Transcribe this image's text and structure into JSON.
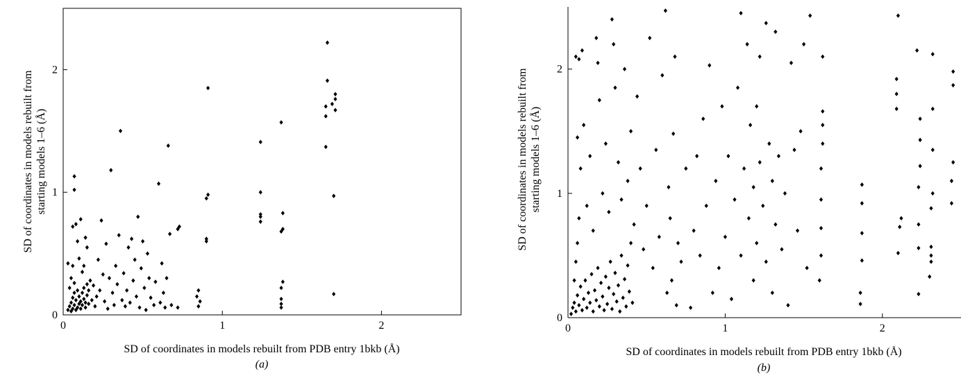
{
  "figure": {
    "background": "#ffffff",
    "point_color": "#000000"
  },
  "chart_data": [
    {
      "type": "scatter",
      "panel_label": "(a)",
      "xlabel": "SD of coordinates in models rebuilt from PDB entry 1bkb (Å)",
      "ylabel_line1": "SD of coordinates in models rebuilt from",
      "ylabel_line2": "starting models 1–6 (Å)",
      "xlim": [
        0,
        2.5
      ],
      "ylim": [
        0,
        2.5
      ],
      "xticks": [
        0,
        1,
        2
      ],
      "yticks": [
        0,
        1,
        2
      ],
      "xtick_labels": [
        "0",
        "1",
        "2"
      ],
      "ytick_labels": [
        "0",
        "1",
        "2"
      ],
      "frame": "box",
      "grid": false,
      "legend": "none",
      "points": [
        [
          0.03,
          0.04
        ],
        [
          0.04,
          0.07
        ],
        [
          0.05,
          0.03
        ],
        [
          0.05,
          0.1
        ],
        [
          0.06,
          0.05
        ],
        [
          0.06,
          0.14
        ],
        [
          0.07,
          0.08
        ],
        [
          0.07,
          0.18
        ],
        [
          0.08,
          0.04
        ],
        [
          0.08,
          0.12
        ],
        [
          0.09,
          0.06
        ],
        [
          0.09,
          0.2
        ],
        [
          0.1,
          0.09
        ],
        [
          0.1,
          0.15
        ],
        [
          0.11,
          0.05
        ],
        [
          0.11,
          0.11
        ],
        [
          0.12,
          0.18
        ],
        [
          0.12,
          0.08
        ],
        [
          0.13,
          0.13
        ],
        [
          0.13,
          0.22
        ],
        [
          0.14,
          0.06
        ],
        [
          0.14,
          0.1
        ],
        [
          0.15,
          0.16
        ],
        [
          0.15,
          0.25
        ],
        [
          0.16,
          0.09
        ],
        [
          0.16,
          0.2
        ],
        [
          0.04,
          0.22
        ],
        [
          0.05,
          0.3
        ],
        [
          0.06,
          0.4
        ],
        [
          0.07,
          0.26
        ],
        [
          0.03,
          0.42
        ],
        [
          0.06,
          0.72
        ],
        [
          0.07,
          1.02
        ],
        [
          0.07,
          1.13
        ],
        [
          0.08,
          0.74
        ],
        [
          0.09,
          0.6
        ],
        [
          0.1,
          0.46
        ],
        [
          0.11,
          0.78
        ],
        [
          0.12,
          0.35
        ],
        [
          0.13,
          0.4
        ],
        [
          0.14,
          0.63
        ],
        [
          0.15,
          0.55
        ],
        [
          0.17,
          0.28
        ],
        [
          0.18,
          0.12
        ],
        [
          0.19,
          0.24
        ],
        [
          0.2,
          0.07
        ],
        [
          0.21,
          0.15
        ],
        [
          0.22,
          0.45
        ],
        [
          0.23,
          0.2
        ],
        [
          0.24,
          0.77
        ],
        [
          0.25,
          0.33
        ],
        [
          0.26,
          0.11
        ],
        [
          0.27,
          0.58
        ],
        [
          0.28,
          0.05
        ],
        [
          0.29,
          0.3
        ],
        [
          0.3,
          1.18
        ],
        [
          0.31,
          0.18
        ],
        [
          0.32,
          0.08
        ],
        [
          0.33,
          0.4
        ],
        [
          0.34,
          0.25
        ],
        [
          0.35,
          0.65
        ],
        [
          0.36,
          1.5
        ],
        [
          0.37,
          0.12
        ],
        [
          0.38,
          0.34
        ],
        [
          0.39,
          0.07
        ],
        [
          0.4,
          0.2
        ],
        [
          0.41,
          0.55
        ],
        [
          0.42,
          0.1
        ],
        [
          0.43,
          0.62
        ],
        [
          0.44,
          0.28
        ],
        [
          0.45,
          0.45
        ],
        [
          0.46,
          0.15
        ],
        [
          0.47,
          0.8
        ],
        [
          0.48,
          0.06
        ],
        [
          0.49,
          0.38
        ],
        [
          0.5,
          0.6
        ],
        [
          0.51,
          0.22
        ],
        [
          0.52,
          0.04
        ],
        [
          0.53,
          0.5
        ],
        [
          0.54,
          0.3
        ],
        [
          0.55,
          0.14
        ],
        [
          0.57,
          0.08
        ],
        [
          0.58,
          0.27
        ],
        [
          0.6,
          1.07
        ],
        [
          0.61,
          0.1
        ],
        [
          0.62,
          0.42
        ],
        [
          0.63,
          0.18
        ],
        [
          0.64,
          0.06
        ],
        [
          0.65,
          0.3
        ],
        [
          0.66,
          1.38
        ],
        [
          0.67,
          0.66
        ],
        [
          0.68,
          0.08
        ],
        [
          0.72,
          0.7
        ],
        [
          0.72,
          0.06
        ],
        [
          0.73,
          0.72
        ],
        [
          0.84,
          0.15
        ],
        [
          0.85,
          0.07
        ],
        [
          0.85,
          0.2
        ],
        [
          0.86,
          0.11
        ],
        [
          0.9,
          0.6
        ],
        [
          0.9,
          0.62
        ],
        [
          0.9,
          0.95
        ],
        [
          0.91,
          0.98
        ],
        [
          0.91,
          1.85
        ],
        [
          1.24,
          0.76
        ],
        [
          1.24,
          0.8
        ],
        [
          1.24,
          0.82
        ],
        [
          1.24,
          1.0
        ],
        [
          1.24,
          1.41
        ],
        [
          1.37,
          0.06
        ],
        [
          1.37,
          0.09
        ],
        [
          1.37,
          0.13
        ],
        [
          1.37,
          0.22
        ],
        [
          1.38,
          0.27
        ],
        [
          1.37,
          0.68
        ],
        [
          1.38,
          0.7
        ],
        [
          1.38,
          0.83
        ],
        [
          1.37,
          1.57
        ],
        [
          1.65,
          1.37
        ],
        [
          1.65,
          1.62
        ],
        [
          1.65,
          1.7
        ],
        [
          1.66,
          1.91
        ],
        [
          1.66,
          2.22
        ],
        [
          1.7,
          0.17
        ],
        [
          1.7,
          0.97
        ],
        [
          1.71,
          1.67
        ],
        [
          1.71,
          1.76
        ],
        [
          1.71,
          1.8
        ],
        [
          1.69,
          1.72
        ]
      ]
    },
    {
      "type": "scatter",
      "panel_label": "(b)",
      "xlabel": "SD of coordinates in models rebuilt from PDB entry 1bkb (Å)",
      "ylabel_line1": "SD of coordinates in models rebuilt from",
      "ylabel_line2": "starting models 1–6 (Å)",
      "xlim": [
        0,
        2.5
      ],
      "ylim": [
        0,
        2.5
      ],
      "xticks": [
        0,
        1,
        2
      ],
      "yticks": [
        0,
        1,
        2
      ],
      "xtick_labels": [
        "0",
        "1",
        "2"
      ],
      "ytick_labels": [
        "0",
        "1",
        "2"
      ],
      "frame": "left-bottom",
      "grid": false,
      "legend": "none",
      "points": [
        [
          0.02,
          0.03
        ],
        [
          0.03,
          0.08
        ],
        [
          0.04,
          0.12
        ],
        [
          0.05,
          0.05
        ],
        [
          0.06,
          0.18
        ],
        [
          0.07,
          0.1
        ],
        [
          0.08,
          0.25
        ],
        [
          0.09,
          0.06
        ],
        [
          0.1,
          0.15
        ],
        [
          0.11,
          0.3
        ],
        [
          0.12,
          0.08
        ],
        [
          0.13,
          0.2
        ],
        [
          0.14,
          0.12
        ],
        [
          0.15,
          0.35
        ],
        [
          0.16,
          0.05
        ],
        [
          0.17,
          0.22
        ],
        [
          0.18,
          0.14
        ],
        [
          0.19,
          0.4
        ],
        [
          0.2,
          0.09
        ],
        [
          0.21,
          0.28
        ],
        [
          0.22,
          0.17
        ],
        [
          0.23,
          0.06
        ],
        [
          0.24,
          0.33
        ],
        [
          0.25,
          0.11
        ],
        [
          0.26,
          0.24
        ],
        [
          0.27,
          0.45
        ],
        [
          0.28,
          0.07
        ],
        [
          0.29,
          0.19
        ],
        [
          0.3,
          0.36
        ],
        [
          0.31,
          0.13
        ],
        [
          0.32,
          0.26
        ],
        [
          0.33,
          0.05
        ],
        [
          0.34,
          0.5
        ],
        [
          0.35,
          0.16
        ],
        [
          0.36,
          0.31
        ],
        [
          0.37,
          0.09
        ],
        [
          0.38,
          0.42
        ],
        [
          0.39,
          0.21
        ],
        [
          0.4,
          0.6
        ],
        [
          0.41,
          0.12
        ],
        [
          0.04,
          0.3
        ],
        [
          0.05,
          0.45
        ],
        [
          0.06,
          0.6
        ],
        [
          0.07,
          0.8
        ],
        [
          0.08,
          1.2
        ],
        [
          0.05,
          2.1
        ],
        [
          0.07,
          2.08
        ],
        [
          0.09,
          2.15
        ],
        [
          0.06,
          1.45
        ],
        [
          0.1,
          1.55
        ],
        [
          0.12,
          0.9
        ],
        [
          0.14,
          1.3
        ],
        [
          0.16,
          0.7
        ],
        [
          0.18,
          2.25
        ],
        [
          0.19,
          2.05
        ],
        [
          0.2,
          1.75
        ],
        [
          0.22,
          1.0
        ],
        [
          0.24,
          1.4
        ],
        [
          0.26,
          0.85
        ],
        [
          0.28,
          2.4
        ],
        [
          0.29,
          2.2
        ],
        [
          0.3,
          1.85
        ],
        [
          0.32,
          1.25
        ],
        [
          0.34,
          0.95
        ],
        [
          0.36,
          2.0
        ],
        [
          0.38,
          1.1
        ],
        [
          0.4,
          1.5
        ],
        [
          0.42,
          0.75
        ],
        [
          0.44,
          1.78
        ],
        [
          0.46,
          1.2
        ],
        [
          0.48,
          0.55
        ],
        [
          0.5,
          0.9
        ],
        [
          0.52,
          2.25
        ],
        [
          0.54,
          0.4
        ],
        [
          0.56,
          1.35
        ],
        [
          0.58,
          0.65
        ],
        [
          0.6,
          1.95
        ],
        [
          0.62,
          2.47
        ],
        [
          0.63,
          0.2
        ],
        [
          0.64,
          1.05
        ],
        [
          0.65,
          0.8
        ],
        [
          0.66,
          0.3
        ],
        [
          0.67,
          1.48
        ],
        [
          0.68,
          2.1
        ],
        [
          0.69,
          0.1
        ],
        [
          0.7,
          0.6
        ],
        [
          0.72,
          0.45
        ],
        [
          0.75,
          1.2
        ],
        [
          0.78,
          0.08
        ],
        [
          0.8,
          0.7
        ],
        [
          0.82,
          1.3
        ],
        [
          0.84,
          0.5
        ],
        [
          0.86,
          1.6
        ],
        [
          0.88,
          0.9
        ],
        [
          0.9,
          2.03
        ],
        [
          0.92,
          0.2
        ],
        [
          0.94,
          1.1
        ],
        [
          0.96,
          0.4
        ],
        [
          0.98,
          1.7
        ],
        [
          1.0,
          0.65
        ],
        [
          1.02,
          1.3
        ],
        [
          1.04,
          0.15
        ],
        [
          1.06,
          0.95
        ],
        [
          1.08,
          1.85
        ],
        [
          1.1,
          2.45
        ],
        [
          1.1,
          0.5
        ],
        [
          1.12,
          1.2
        ],
        [
          1.14,
          2.2
        ],
        [
          1.15,
          0.8
        ],
        [
          1.16,
          1.55
        ],
        [
          1.18,
          0.3
        ],
        [
          1.18,
          1.05
        ],
        [
          1.2,
          1.7
        ],
        [
          1.2,
          0.6
        ],
        [
          1.22,
          2.1
        ],
        [
          1.22,
          1.25
        ],
        [
          1.24,
          0.9
        ],
        [
          1.26,
          2.37
        ],
        [
          1.26,
          0.45
        ],
        [
          1.28,
          1.4
        ],
        [
          1.3,
          0.2
        ],
        [
          1.3,
          1.1
        ],
        [
          1.32,
          2.3
        ],
        [
          1.32,
          0.75
        ],
        [
          1.34,
          1.3
        ],
        [
          1.36,
          0.55
        ],
        [
          1.38,
          1.0
        ],
        [
          1.4,
          0.1
        ],
        [
          1.42,
          2.05
        ],
        [
          1.44,
          1.35
        ],
        [
          1.46,
          0.7
        ],
        [
          1.48,
          1.5
        ],
        [
          1.5,
          2.2
        ],
        [
          1.52,
          0.4
        ],
        [
          1.54,
          2.43
        ],
        [
          1.6,
          0.3
        ],
        [
          1.61,
          0.5
        ],
        [
          1.61,
          0.72
        ],
        [
          1.61,
          0.95
        ],
        [
          1.61,
          1.2
        ],
        [
          1.62,
          1.4
        ],
        [
          1.62,
          1.55
        ],
        [
          1.62,
          1.66
        ],
        [
          1.62,
          2.1
        ],
        [
          1.86,
          0.11
        ],
        [
          1.86,
          0.2
        ],
        [
          1.87,
          0.46
        ],
        [
          1.87,
          0.68
        ],
        [
          1.87,
          0.92
        ],
        [
          1.87,
          1.07
        ],
        [
          2.09,
          1.68
        ],
        [
          2.09,
          1.8
        ],
        [
          2.09,
          1.92
        ],
        [
          2.1,
          2.43
        ],
        [
          2.1,
          0.52
        ],
        [
          2.11,
          0.73
        ],
        [
          2.12,
          0.8
        ],
        [
          2.23,
          0.19
        ],
        [
          2.23,
          0.56
        ],
        [
          2.23,
          0.75
        ],
        [
          2.23,
          1.05
        ],
        [
          2.24,
          1.22
        ],
        [
          2.24,
          1.43
        ],
        [
          2.24,
          1.6
        ],
        [
          2.22,
          2.15
        ],
        [
          2.3,
          0.33
        ],
        [
          2.31,
          0.45
        ],
        [
          2.31,
          0.5
        ],
        [
          2.31,
          0.57
        ],
        [
          2.31,
          0.88
        ],
        [
          2.32,
          1.0
        ],
        [
          2.32,
          1.35
        ],
        [
          2.32,
          1.68
        ],
        [
          2.32,
          2.12
        ],
        [
          2.44,
          0.92
        ],
        [
          2.44,
          1.1
        ],
        [
          2.45,
          1.25
        ],
        [
          2.45,
          1.87
        ],
        [
          2.45,
          1.98
        ]
      ]
    }
  ]
}
